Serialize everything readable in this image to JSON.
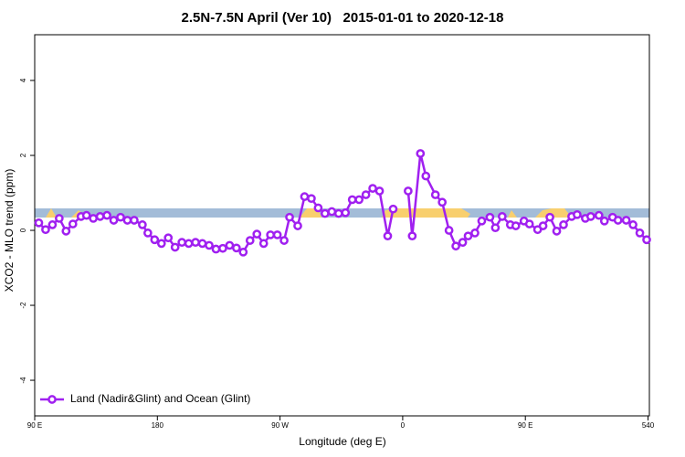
{
  "chart_data": {
    "type": "line",
    "title": "2.5N-7.5N April (Ver 10)   2015-01-01 to 2020-12-18",
    "x_label": "Longitude (deg E)",
    "y_label": "XCO2 - MLO trend (ppm)",
    "xlim": [
      90,
      541
    ],
    "ylim": [
      -4.95,
      5.22
    ],
    "xticks": [
      {
        "value": 90,
        "label": "90 E"
      },
      180,
      {
        "value": 270,
        "label": "90 W"
      },
      {
        "value": 360,
        "label": "0"
      },
      {
        "value": 450,
        "label": "90 E"
      },
      540
    ],
    "yticks": [
      -4,
      -2,
      0,
      2,
      4
    ],
    "legend": "bottom-left",
    "x": [
      93,
      98,
      103,
      108,
      113,
      118,
      124,
      128,
      133,
      138,
      143,
      148,
      153,
      158,
      163,
      169,
      173,
      178,
      183,
      188,
      193,
      198,
      203,
      208,
      213,
      218,
      223,
      228,
      233,
      238,
      243,
      248,
      253,
      258,
      263,
      268,
      273,
      277,
      283,
      288,
      293,
      298,
      303,
      308,
      313,
      318,
      323,
      328,
      333,
      338,
      343,
      349,
      353,
      358,
      364,
      367,
      373,
      377,
      384,
      389,
      394,
      399,
      404,
      408,
      413,
      418,
      424,
      428,
      433,
      439,
      443,
      449,
      453,
      459,
      463,
      468,
      473,
      478,
      484,
      488,
      494,
      498,
      504,
      508,
      514,
      518,
      524,
      529,
      534,
      539
    ],
    "series": [
      {
        "name": "Land (Nadir&Glint) and Ocean (Glint)",
        "color": "#a020f0",
        "values": [
          0.2,
          0.02,
          0.15,
          0.32,
          -0.02,
          0.17,
          0.37,
          0.4,
          0.32,
          0.37,
          0.4,
          0.27,
          0.35,
          0.27,
          0.27,
          0.15,
          -0.07,
          -0.25,
          -0.35,
          -0.2,
          -0.45,
          -0.32,
          -0.35,
          -0.32,
          -0.35,
          -0.4,
          -0.5,
          -0.48,
          -0.4,
          -0.47,
          -0.58,
          -0.27,
          -0.1,
          -0.35,
          -0.12,
          -0.12,
          -0.27,
          0.35,
          0.12,
          0.9,
          0.85,
          0.6,
          0.45,
          0.5,
          0.45,
          0.47,
          0.82,
          0.82,
          0.95,
          1.12,
          1.05,
          -0.15,
          0.57,
          null,
          1.05,
          -0.15,
          2.05,
          1.45,
          0.95,
          0.75,
          0,
          -0.42,
          -0.32,
          -0.15,
          -0.07,
          0.25,
          0.35,
          0.07,
          0.37,
          0.15,
          0.12,
          0.25,
          0.17,
          0.02,
          0.12,
          0.35,
          -0.02,
          0.15,
          0.37,
          0.42,
          0.32,
          0.37,
          0.4,
          0.25,
          0.35,
          0.27,
          0.27,
          0.15,
          -0.07,
          -0.25
        ]
      }
    ]
  }
}
